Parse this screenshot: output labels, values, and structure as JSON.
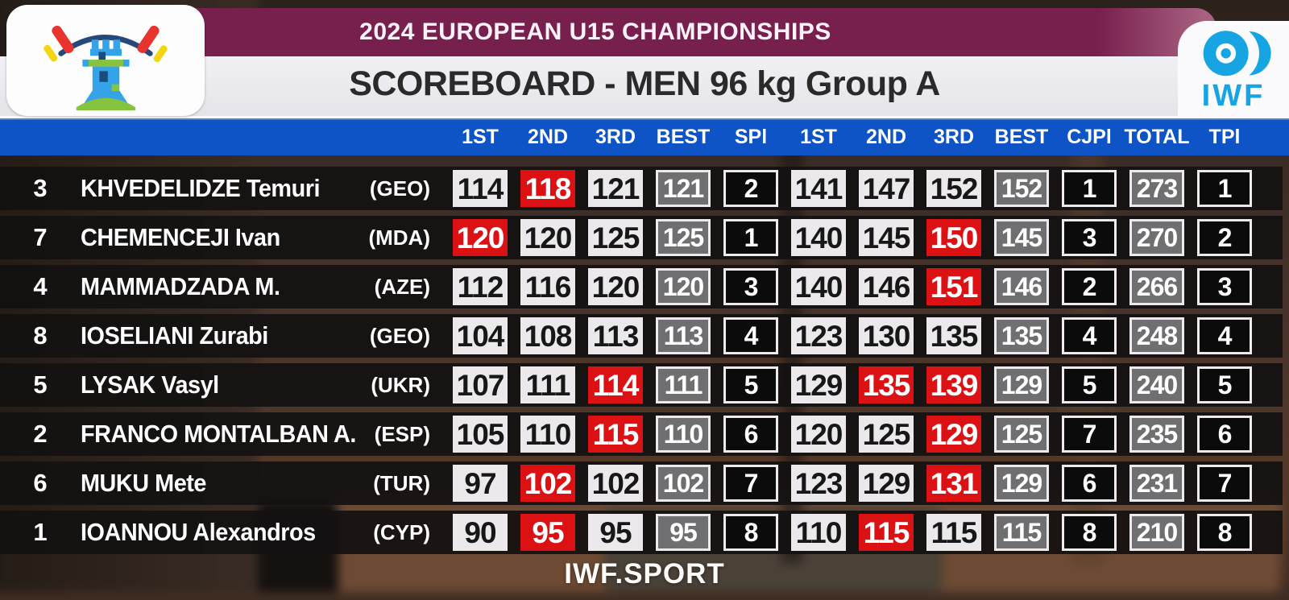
{
  "header": {
    "event_title": "2024 EUROPEAN U15 CHAMPIONSHIPS",
    "board_title": "SCOREBOARD - MEN 96 kg Group A",
    "iwf_logo_text": "IWF"
  },
  "columns": [
    "1ST",
    "2ND",
    "3RD",
    "BEST",
    "SPl",
    "1ST",
    "2ND",
    "3RD",
    "BEST",
    "CJPl",
    "TOTAL",
    "TPl"
  ],
  "rows": [
    {
      "lot": "3",
      "name": "KHVEDELIDZE Temuri",
      "country": "(GEO)",
      "cells": [
        {
          "v": "114",
          "t": "attempt"
        },
        {
          "v": "118",
          "t": "attempt-failed"
        },
        {
          "v": "121",
          "t": "attempt"
        },
        {
          "v": "121",
          "t": "best"
        },
        {
          "v": "2",
          "t": "place"
        },
        {
          "v": "141",
          "t": "attempt"
        },
        {
          "v": "147",
          "t": "attempt"
        },
        {
          "v": "152",
          "t": "attempt"
        },
        {
          "v": "152",
          "t": "best"
        },
        {
          "v": "1",
          "t": "place"
        },
        {
          "v": "273",
          "t": "total"
        },
        {
          "v": "1",
          "t": "place"
        }
      ]
    },
    {
      "lot": "7",
      "name": "CHEMENCEJI Ivan",
      "country": "(MDA)",
      "cells": [
        {
          "v": "120",
          "t": "attempt-failed"
        },
        {
          "v": "120",
          "t": "attempt"
        },
        {
          "v": "125",
          "t": "attempt"
        },
        {
          "v": "125",
          "t": "best"
        },
        {
          "v": "1",
          "t": "place"
        },
        {
          "v": "140",
          "t": "attempt"
        },
        {
          "v": "145",
          "t": "attempt"
        },
        {
          "v": "150",
          "t": "attempt-failed"
        },
        {
          "v": "145",
          "t": "best"
        },
        {
          "v": "3",
          "t": "place"
        },
        {
          "v": "270",
          "t": "total"
        },
        {
          "v": "2",
          "t": "place"
        }
      ]
    },
    {
      "lot": "4",
      "name": "MAMMADZADA M.",
      "country": "(AZE)",
      "cells": [
        {
          "v": "112",
          "t": "attempt"
        },
        {
          "v": "116",
          "t": "attempt"
        },
        {
          "v": "120",
          "t": "attempt"
        },
        {
          "v": "120",
          "t": "best"
        },
        {
          "v": "3",
          "t": "place"
        },
        {
          "v": "140",
          "t": "attempt"
        },
        {
          "v": "146",
          "t": "attempt"
        },
        {
          "v": "151",
          "t": "attempt-failed"
        },
        {
          "v": "146",
          "t": "best"
        },
        {
          "v": "2",
          "t": "place"
        },
        {
          "v": "266",
          "t": "total"
        },
        {
          "v": "3",
          "t": "place"
        }
      ]
    },
    {
      "lot": "8",
      "name": "IOSELIANI Zurabi",
      "country": "(GEO)",
      "cells": [
        {
          "v": "104",
          "t": "attempt"
        },
        {
          "v": "108",
          "t": "attempt"
        },
        {
          "v": "113",
          "t": "attempt"
        },
        {
          "v": "113",
          "t": "best"
        },
        {
          "v": "4",
          "t": "place"
        },
        {
          "v": "123",
          "t": "attempt"
        },
        {
          "v": "130",
          "t": "attempt"
        },
        {
          "v": "135",
          "t": "attempt"
        },
        {
          "v": "135",
          "t": "best"
        },
        {
          "v": "4",
          "t": "place"
        },
        {
          "v": "248",
          "t": "total"
        },
        {
          "v": "4",
          "t": "place"
        }
      ]
    },
    {
      "lot": "5",
      "name": "LYSAK Vasyl",
      "country": "(UKR)",
      "cells": [
        {
          "v": "107",
          "t": "attempt"
        },
        {
          "v": "111",
          "t": "attempt"
        },
        {
          "v": "114",
          "t": "attempt-failed"
        },
        {
          "v": "111",
          "t": "best"
        },
        {
          "v": "5",
          "t": "place"
        },
        {
          "v": "129",
          "t": "attempt"
        },
        {
          "v": "135",
          "t": "attempt-failed"
        },
        {
          "v": "139",
          "t": "attempt-failed"
        },
        {
          "v": "129",
          "t": "best"
        },
        {
          "v": "5",
          "t": "place"
        },
        {
          "v": "240",
          "t": "total"
        },
        {
          "v": "5",
          "t": "place"
        }
      ]
    },
    {
      "lot": "2",
      "name": "FRANCO MONTALBAN A.",
      "country": "(ESP)",
      "cells": [
        {
          "v": "105",
          "t": "attempt"
        },
        {
          "v": "110",
          "t": "attempt"
        },
        {
          "v": "115",
          "t": "attempt-failed"
        },
        {
          "v": "110",
          "t": "best"
        },
        {
          "v": "6",
          "t": "place"
        },
        {
          "v": "120",
          "t": "attempt"
        },
        {
          "v": "125",
          "t": "attempt"
        },
        {
          "v": "129",
          "t": "attempt-failed"
        },
        {
          "v": "125",
          "t": "best"
        },
        {
          "v": "7",
          "t": "place"
        },
        {
          "v": "235",
          "t": "total"
        },
        {
          "v": "6",
          "t": "place"
        }
      ]
    },
    {
      "lot": "6",
      "name": "MUKU Mete",
      "country": "(TUR)",
      "cells": [
        {
          "v": "97",
          "t": "attempt"
        },
        {
          "v": "102",
          "t": "attempt-failed"
        },
        {
          "v": "102",
          "t": "attempt"
        },
        {
          "v": "102",
          "t": "best"
        },
        {
          "v": "7",
          "t": "place"
        },
        {
          "v": "123",
          "t": "attempt"
        },
        {
          "v": "129",
          "t": "attempt"
        },
        {
          "v": "131",
          "t": "attempt-failed"
        },
        {
          "v": "129",
          "t": "best"
        },
        {
          "v": "6",
          "t": "place"
        },
        {
          "v": "231",
          "t": "total"
        },
        {
          "v": "7",
          "t": "place"
        }
      ]
    },
    {
      "lot": "1",
      "name": "IOANNOU Alexandros",
      "country": "(CYP)",
      "cells": [
        {
          "v": "90",
          "t": "attempt"
        },
        {
          "v": "95",
          "t": "attempt-failed"
        },
        {
          "v": "95",
          "t": "attempt"
        },
        {
          "v": "95",
          "t": "best"
        },
        {
          "v": "8",
          "t": "place"
        },
        {
          "v": "110",
          "t": "attempt"
        },
        {
          "v": "115",
          "t": "attempt-failed"
        },
        {
          "v": "115",
          "t": "attempt"
        },
        {
          "v": "115",
          "t": "best"
        },
        {
          "v": "8",
          "t": "place"
        },
        {
          "v": "210",
          "t": "total"
        },
        {
          "v": "8",
          "t": "place"
        }
      ]
    }
  ],
  "footer": {
    "watermark": "IWF.SPORT"
  },
  "colors": {
    "banner_maroon": "#77204E",
    "header_blue": "#0E54C6",
    "cell_light": "#EBE9EC",
    "cell_failed_red": "#DC1113",
    "cell_best_gray": "#6F6E71",
    "cell_place_black": "#0C0B0B",
    "iwf_cyan": "#16A5E2",
    "row_background": "#131111"
  }
}
